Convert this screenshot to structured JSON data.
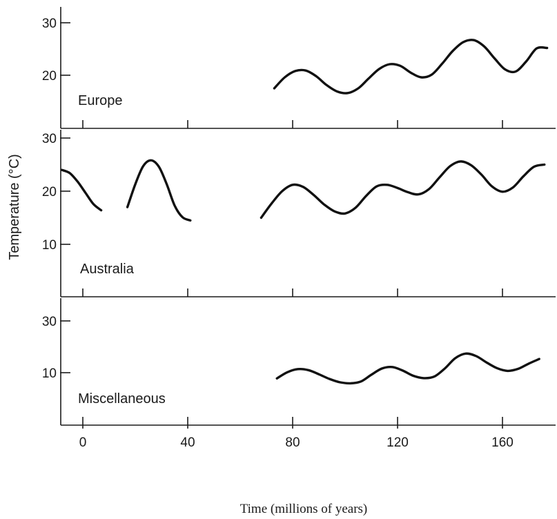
{
  "chart_data": {
    "type": "line",
    "title": "",
    "xlabel": "Time (millions of years)",
    "ylabel": "Temperature (°C)",
    "xlim": [
      -8,
      180
    ],
    "x_ticks": [
      0,
      40,
      80,
      120,
      160
    ],
    "x_tick_labels": [
      "0",
      "40",
      "80",
      "120",
      "160"
    ],
    "grid": false,
    "panels": [
      {
        "name": "Europe",
        "ylim": [
          11,
          33
        ],
        "y_ticks": [
          20,
          30
        ],
        "y_tick_labels": [
          "20",
          "30"
        ],
        "series": [
          {
            "x": [
              73,
              77,
              81,
              85,
              89,
              93,
              97,
              101,
              105,
              109,
              113,
              117,
              121,
              125,
              129,
              133,
              137,
              141,
              145,
              149,
              153,
              157,
              161,
              165,
              169,
              173,
              177
            ],
            "y": [
              17.5,
              19.6,
              20.8,
              20.9,
              19.8,
              18.1,
              16.9,
              16.6,
              17.5,
              19.4,
              21.2,
              22.1,
              21.8,
              20.5,
              19.6,
              20.1,
              22.2,
              24.6,
              26.3,
              26.7,
              25.5,
              23.2,
              21.1,
              20.7,
              22.6,
              25.1,
              25.2
            ]
          }
        ]
      },
      {
        "name": "Australia",
        "ylim": [
          0,
          30
        ],
        "y_ticks": [
          10,
          20,
          30
        ],
        "y_tick_labels": [
          "10",
          "20",
          "30"
        ],
        "series": [
          {
            "x": [
              -8,
              -5,
              -2,
              1,
              4,
              7
            ],
            "y": [
              24,
              23.4,
              21.8,
              19.7,
              17.6,
              16.4
            ]
          },
          {
            "x": [
              17,
              20,
              23,
              26,
              29,
              32,
              35,
              38,
              41
            ],
            "y": [
              17,
              21.3,
              24.7,
              25.8,
              24.6,
              21.3,
              17.3,
              15.1,
              14.5
            ]
          },
          {
            "x": [
              68,
              72,
              76,
              80,
              84,
              88,
              92,
              96,
              100,
              104,
              108,
              112,
              116,
              120,
              124,
              128,
              132,
              136,
              140,
              144,
              148,
              152,
              156,
              160,
              164,
              168,
              172,
              176
            ],
            "y": [
              15,
              17.7,
              20,
              21.2,
              20.8,
              19.3,
              17.5,
              16.2,
              15.8,
              16.9,
              19.1,
              20.9,
              21.2,
              20.6,
              19.8,
              19.4,
              20.4,
              22.6,
              24.7,
              25.6,
              24.9,
              23.1,
              20.9,
              19.9,
              20.7,
              22.8,
              24.6,
              25
            ]
          }
        ]
      },
      {
        "name": "Miscellaneous",
        "ylim": [
          0,
          35
        ],
        "y_ticks": [
          10,
          30
        ],
        "y_tick_labels": [
          "10",
          "30"
        ],
        "series": [
          {
            "x": [
              74,
              78,
              82,
              86,
              90,
              94,
              98,
              102,
              106,
              110,
              114,
              118,
              122,
              126,
              130,
              134,
              138,
              142,
              146,
              150,
              154,
              158,
              162,
              166,
              170,
              174
            ],
            "y": [
              7.8,
              10.2,
              11.4,
              11,
              9.4,
              7.6,
              6.3,
              5.9,
              6.6,
              9.2,
              11.6,
              12.2,
              10.8,
              8.8,
              7.9,
              8.5,
              11.6,
              15.6,
              17.4,
              16.4,
              13.9,
              11.7,
              10.7,
              11.5,
              13.5,
              15.3
            ]
          }
        ]
      }
    ]
  }
}
